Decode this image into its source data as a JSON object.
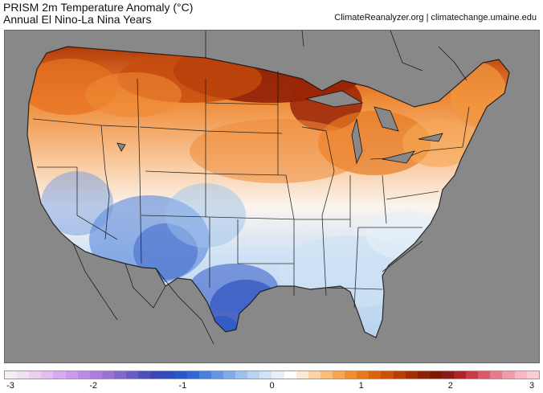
{
  "title": {
    "line1": "PRISM 2m Temperature Anomaly (°C)",
    "line2": "Annual El Nino-La Nina Years"
  },
  "credit": "ClimateReanalyzer.org | climatechange.umaine.edu",
  "colorbar": {
    "min": -3,
    "max": 3,
    "tick_labels": [
      "-3",
      "-2",
      "-1",
      "0",
      "1",
      "2",
      "3"
    ],
    "colors": [
      "#f7edf7",
      "#f2e0f2",
      "#ecd0f0",
      "#e3bdf0",
      "#d8aaee",
      "#cc9ae9",
      "#bd8ae3",
      "#ad7cdc",
      "#9a72d4",
      "#8367cb",
      "#6a5cc2",
      "#4f4fb9",
      "#3948b3",
      "#2f4cb9",
      "#2b57c6",
      "#3468d1",
      "#4a7ed9",
      "#6595e0",
      "#80abe6",
      "#9cc1ec",
      "#b7d4f1",
      "#d0e4f5",
      "#e6f0f8",
      "#ffffff",
      "#fde9d4",
      "#fbd3a6",
      "#f9bd7b",
      "#f6a653",
      "#f08f31",
      "#e6791b",
      "#d9640e",
      "#c95109",
      "#b63f07",
      "#a12f06",
      "#8c2205",
      "#7a1804",
      "#8b1a1a",
      "#a8282a",
      "#c53d45",
      "#d95a68",
      "#e57b8b",
      "#ee9ca9",
      "#f5bac3",
      "#f8cdd3"
    ]
  },
  "map": {
    "region": "Contiguous United States",
    "colors": {
      "ocean": "#888888",
      "land_neutral": "#fbf4ee",
      "warm_light": "#f9b780",
      "warm_mid": "#ee8a36",
      "warm_strong": "#cc4e10",
      "hot_core": "#8f1f05",
      "cool_light": "#cfe2f5",
      "cool_mid": "#89b3e6",
      "cool_strong": "#3d63c9",
      "borders": "#111111"
    }
  }
}
